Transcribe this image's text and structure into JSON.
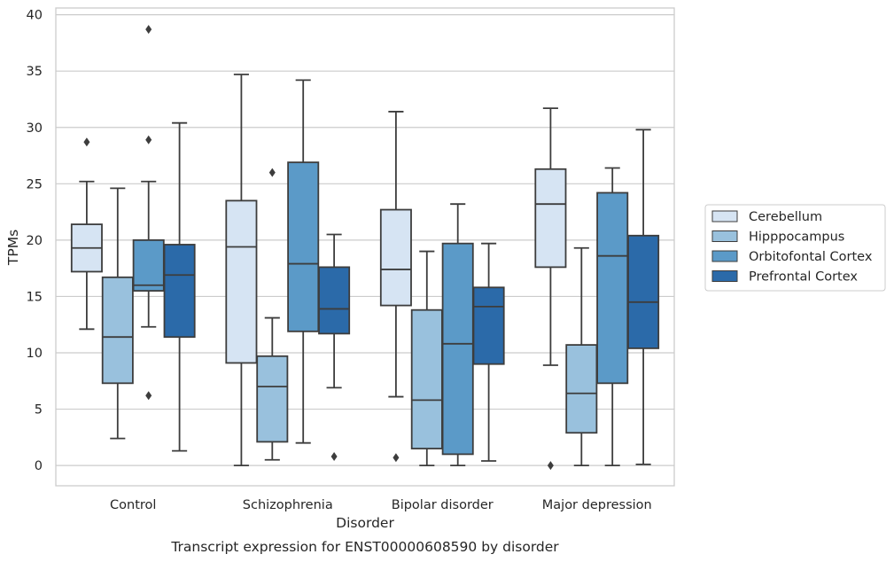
{
  "chart_data": {
    "type": "boxplot",
    "xlabel": "Disorder",
    "ylabel": "TPMs",
    "caption": "Transcript expression for ENST00000608590 by disorder",
    "ylim": [
      -1.8,
      40.6
    ],
    "yticks": [
      0,
      5,
      10,
      15,
      20,
      25,
      30,
      35,
      40
    ],
    "grid": "horizontal",
    "legend_position": "right",
    "categories": [
      "Control",
      "Schizophrenia",
      "Bipolar disorder",
      "Major depression"
    ],
    "series": [
      {
        "name": "Cerebellum",
        "color": "#d6e4f3",
        "boxes": [
          {
            "whisker_low": 12.1,
            "q1": 17.2,
            "median": 19.3,
            "q3": 21.4,
            "whisker_high": 25.2,
            "outliers": [
              28.7
            ]
          },
          {
            "whisker_low": 0.0,
            "q1": 9.1,
            "median": 19.4,
            "q3": 23.5,
            "whisker_high": 34.7,
            "outliers": []
          },
          {
            "whisker_low": 6.1,
            "q1": 14.2,
            "median": 17.4,
            "q3": 22.7,
            "whisker_high": 31.4,
            "outliers": [
              0.7
            ]
          },
          {
            "whisker_low": 8.9,
            "q1": 17.6,
            "median": 23.2,
            "q3": 26.3,
            "whisker_high": 31.7,
            "outliers": [
              0.0
            ]
          }
        ]
      },
      {
        "name": "Hipppocampus",
        "color": "#99c1dd",
        "boxes": [
          {
            "whisker_low": 2.4,
            "q1": 7.3,
            "median": 11.4,
            "q3": 16.7,
            "whisker_high": 24.6,
            "outliers": []
          },
          {
            "whisker_low": 0.5,
            "q1": 2.1,
            "median": 7.0,
            "q3": 9.7,
            "whisker_high": 13.1,
            "outliers": [
              26.0
            ]
          },
          {
            "whisker_low": 0.0,
            "q1": 1.5,
            "median": 5.8,
            "q3": 13.8,
            "whisker_high": 19.0,
            "outliers": []
          },
          {
            "whisker_low": 0.0,
            "q1": 2.9,
            "median": 6.4,
            "q3": 10.7,
            "whisker_high": 19.3,
            "outliers": []
          }
        ]
      },
      {
        "name": "Orbitofontal Cortex",
        "color": "#5b9ac8",
        "boxes": [
          {
            "whisker_low": 12.3,
            "q1": 15.5,
            "median": 16.0,
            "q3": 20.0,
            "whisker_high": 25.2,
            "outliers": [
              38.7,
              28.9,
              6.2
            ]
          },
          {
            "whisker_low": 2.0,
            "q1": 11.9,
            "median": 17.9,
            "q3": 26.9,
            "whisker_high": 34.2,
            "outliers": []
          },
          {
            "whisker_low": 0.0,
            "q1": 1.0,
            "median": 10.8,
            "q3": 19.7,
            "whisker_high": 23.2,
            "outliers": []
          },
          {
            "whisker_low": 0.0,
            "q1": 7.3,
            "median": 18.6,
            "q3": 24.2,
            "whisker_high": 26.4,
            "outliers": []
          }
        ]
      },
      {
        "name": "Prefrontal Cortex",
        "color": "#2b6aa9",
        "boxes": [
          {
            "whisker_low": 1.3,
            "q1": 11.4,
            "median": 16.9,
            "q3": 19.6,
            "whisker_high": 30.4,
            "outliers": []
          },
          {
            "whisker_low": 6.9,
            "q1": 11.7,
            "median": 13.9,
            "q3": 17.6,
            "whisker_high": 20.5,
            "outliers": [
              0.8
            ]
          },
          {
            "whisker_low": 0.4,
            "q1": 9.0,
            "median": 14.1,
            "q3": 15.8,
            "whisker_high": 19.7,
            "outliers": []
          },
          {
            "whisker_low": 0.1,
            "q1": 10.4,
            "median": 14.5,
            "q3": 20.4,
            "whisker_high": 29.8,
            "outliers": []
          }
        ]
      }
    ]
  }
}
